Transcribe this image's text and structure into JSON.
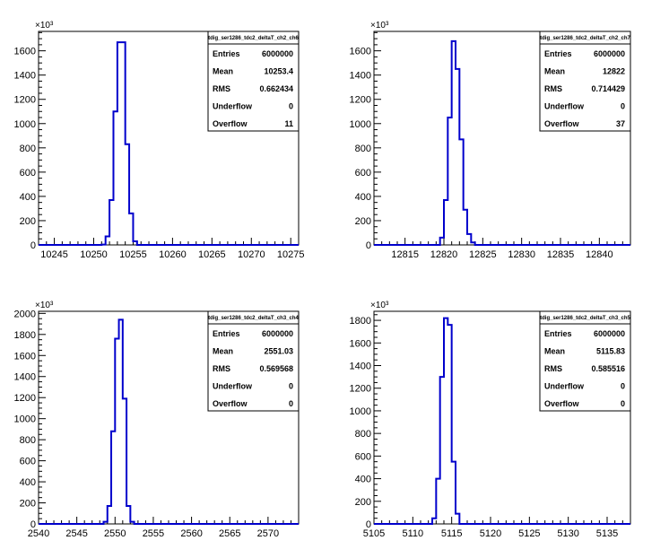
{
  "charts": [
    {
      "name": "tdig_ser1286_tdc2_deltaT_ch2_ch6",
      "stats": [
        {
          "label": "Entries",
          "value": "6000000"
        },
        {
          "label": "Mean",
          "value": "10253.4"
        },
        {
          "label": "RMS",
          "value": "0.662434"
        },
        {
          "label": "Underflow",
          "value": "0"
        },
        {
          "label": "Overflow",
          "value": "11"
        }
      ],
      "y_multiplier": "×10³"
    },
    {
      "name": "tdig_ser1286_tdc2_deltaT_ch2_ch7",
      "stats": [
        {
          "label": "Entries",
          "value": "6000000"
        },
        {
          "label": "Mean",
          "value": "12822"
        },
        {
          "label": "RMS",
          "value": "0.714429"
        },
        {
          "label": "Underflow",
          "value": "0"
        },
        {
          "label": "Overflow",
          "value": "37"
        }
      ],
      "y_multiplier": "×10³"
    },
    {
      "name": "tdig_ser1286_tdc2_deltaT_ch3_ch4",
      "stats": [
        {
          "label": "Entries",
          "value": "6000000"
        },
        {
          "label": "Mean",
          "value": "2551.03"
        },
        {
          "label": "RMS",
          "value": "0.569568"
        },
        {
          "label": "Underflow",
          "value": "0"
        },
        {
          "label": "Overflow",
          "value": "0"
        }
      ],
      "y_multiplier": "×10³"
    },
    {
      "name": "tdig_ser1286_tdc2_deltaT_ch3_ch5",
      "stats": [
        {
          "label": "Entries",
          "value": "6000000"
        },
        {
          "label": "Mean",
          "value": "5115.83"
        },
        {
          "label": "RMS",
          "value": "0.585516"
        },
        {
          "label": "Underflow",
          "value": "0"
        },
        {
          "label": "Overflow",
          "value": "0"
        }
      ],
      "y_multiplier": "×10³"
    }
  ],
  "line_color": "#0000cc",
  "chart_data": [
    {
      "type": "histogram",
      "title": "tdig_ser1286_tdc2_deltaT_ch2_ch6",
      "xlim": [
        10243,
        10276
      ],
      "ylim": [
        0,
        1760
      ],
      "x_ticks": [
        10245,
        10250,
        10255,
        10260,
        10265,
        10270,
        10275
      ],
      "y_ticks": [
        0,
        200,
        400,
        600,
        800,
        1000,
        1200,
        1400,
        1600
      ],
      "bin_width": 0.5,
      "bins": [
        {
          "x": 10243.0,
          "y": 0
        },
        {
          "x": 10251.0,
          "y": 3
        },
        {
          "x": 10251.5,
          "y": 70
        },
        {
          "x": 10252.0,
          "y": 370
        },
        {
          "x": 10252.5,
          "y": 1100
        },
        {
          "x": 10253.0,
          "y": 1670
        },
        {
          "x": 10253.5,
          "y": 1670
        },
        {
          "x": 10254.0,
          "y": 830
        },
        {
          "x": 10254.5,
          "y": 260
        },
        {
          "x": 10255.0,
          "y": 30
        },
        {
          "x": 10255.5,
          "y": 0
        }
      ],
      "grid": false
    },
    {
      "type": "histogram",
      "title": "tdig_ser1286_tdc2_deltaT_ch2_ch7",
      "xlim": [
        12811,
        12844
      ],
      "ylim": [
        0,
        1760
      ],
      "x_ticks": [
        12815,
        12820,
        12825,
        12830,
        12835,
        12840
      ],
      "y_ticks": [
        0,
        200,
        400,
        600,
        800,
        1000,
        1200,
        1400,
        1600
      ],
      "bin_width": 0.5,
      "bins": [
        {
          "x": 12811.0,
          "y": 0
        },
        {
          "x": 12819.5,
          "y": 60
        },
        {
          "x": 12820.0,
          "y": 370
        },
        {
          "x": 12820.5,
          "y": 1050
        },
        {
          "x": 12821.0,
          "y": 1680
        },
        {
          "x": 12821.5,
          "y": 1450
        },
        {
          "x": 12822.0,
          "y": 870
        },
        {
          "x": 12822.5,
          "y": 290
        },
        {
          "x": 12823.0,
          "y": 90
        },
        {
          "x": 12823.5,
          "y": 20
        },
        {
          "x": 12824.0,
          "y": 0
        }
      ],
      "grid": false
    },
    {
      "type": "histogram",
      "title": "tdig_ser1286_tdc2_deltaT_ch3_ch4",
      "xlim": [
        2540,
        2574
      ],
      "ylim": [
        0,
        2020
      ],
      "x_ticks": [
        2540,
        2545,
        2550,
        2555,
        2560,
        2565,
        2570
      ],
      "y_ticks": [
        0,
        200,
        400,
        600,
        800,
        1000,
        1200,
        1400,
        1600,
        1800,
        2000
      ],
      "bin_width": 0.5,
      "bins": [
        {
          "x": 2540.0,
          "y": 0
        },
        {
          "x": 2548.5,
          "y": 20
        },
        {
          "x": 2549.0,
          "y": 170
        },
        {
          "x": 2549.5,
          "y": 880
        },
        {
          "x": 2550.0,
          "y": 1760
        },
        {
          "x": 2550.5,
          "y": 1940
        },
        {
          "x": 2551.0,
          "y": 1190
        },
        {
          "x": 2551.5,
          "y": 170
        },
        {
          "x": 2552.0,
          "y": 20
        },
        {
          "x": 2552.5,
          "y": 0
        }
      ],
      "grid": false
    },
    {
      "type": "histogram",
      "title": "tdig_ser1286_tdc2_deltaT_ch3_ch5",
      "xlim": [
        5105,
        5138
      ],
      "ylim": [
        0,
        1880
      ],
      "x_ticks": [
        5105,
        5110,
        5115,
        5120,
        5125,
        5130,
        5135
      ],
      "y_ticks": [
        0,
        200,
        400,
        600,
        800,
        1000,
        1200,
        1400,
        1600,
        1800
      ],
      "bin_width": 0.5,
      "bins": [
        {
          "x": 5105.0,
          "y": 0
        },
        {
          "x": 5112.5,
          "y": 50
        },
        {
          "x": 5113.0,
          "y": 400
        },
        {
          "x": 5113.5,
          "y": 1300
        },
        {
          "x": 5114.0,
          "y": 1820
        },
        {
          "x": 5114.5,
          "y": 1760
        },
        {
          "x": 5115.0,
          "y": 550
        },
        {
          "x": 5115.5,
          "y": 90
        },
        {
          "x": 5116.0,
          "y": 0
        }
      ],
      "grid": false
    }
  ]
}
